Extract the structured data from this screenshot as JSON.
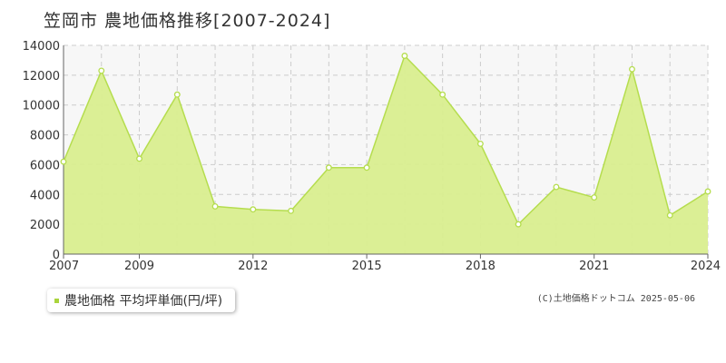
{
  "header": {
    "title": "笠岡市 農地価格推移[2007-2024]"
  },
  "legend": {
    "label": "農地価格 平均坪単価(円/坪)"
  },
  "footer": {
    "copyright": "(C)土地価格ドットコム 2025-05-06"
  },
  "colors": {
    "line": "#b5dd4e",
    "fill": "#d9ee8f",
    "marker": "#aad43c"
  },
  "chart_data": {
    "type": "area",
    "title": "笠岡市 農地価格推移[2007-2024]",
    "x": [
      2007,
      2008,
      2009,
      2010,
      2011,
      2012,
      2013,
      2014,
      2015,
      2016,
      2017,
      2018,
      2019,
      2020,
      2021,
      2022,
      2023,
      2024
    ],
    "series": [
      {
        "name": "農地価格 平均坪単価(円/坪)",
        "values": [
          6200,
          12300,
          6400,
          10700,
          3200,
          3000,
          2900,
          5800,
          5800,
          13300,
          10700,
          7400,
          2000,
          4500,
          3800,
          12400,
          2600,
          4200
        ]
      }
    ],
    "xticks": [
      2007,
      2009,
      2012,
      2015,
      2018,
      2021,
      2024
    ],
    "yticks": [
      0,
      2000,
      4000,
      6000,
      8000,
      10000,
      12000,
      14000
    ],
    "xlim": [
      2007,
      2024
    ],
    "ylim": [
      0,
      14000
    ],
    "grid": true
  }
}
